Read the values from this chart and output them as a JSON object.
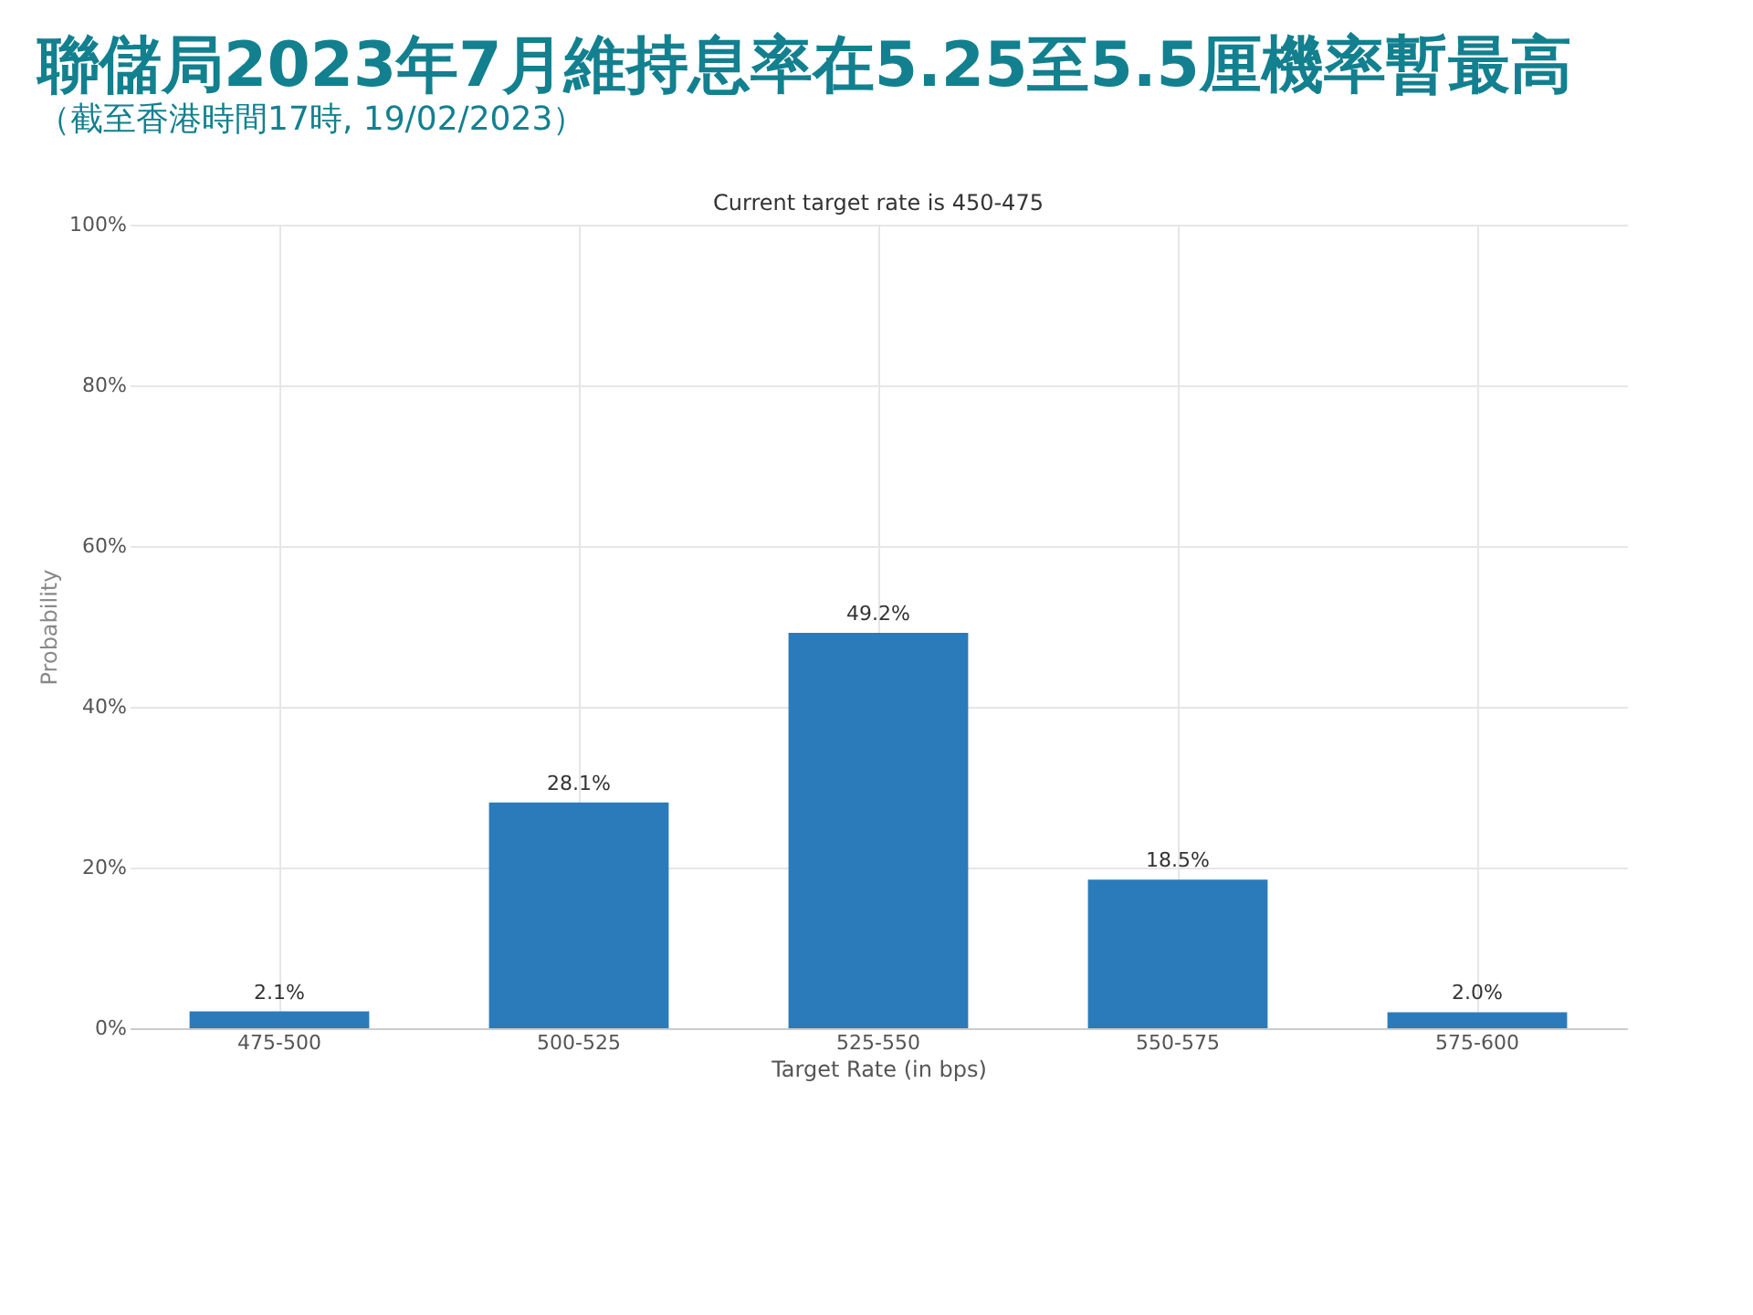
{
  "chart_data": {
    "type": "bar",
    "title": "聯儲局2023年7月維持息率在5.25至5.5厘機率暫最高",
    "subtitle": "（截至香港時間17時, 19/02/2023）",
    "annotations": [
      "Current target rate is 450-475"
    ],
    "categories": [
      "475-500",
      "500-525",
      "525-550",
      "550-575",
      "575-600"
    ],
    "values": [
      2.1,
      28.1,
      49.2,
      18.5,
      2.0
    ],
    "value_labels": [
      "2.1%",
      "28.1%",
      "49.2%",
      "18.5%",
      "2.0%"
    ],
    "color": "#2b7bba",
    "xlabel": "Target Rate (in bps)",
    "ylabel": "Probability",
    "ylim": [
      0,
      100
    ],
    "yticks": [
      {
        "value": 0,
        "label": "0%"
      },
      {
        "value": 20,
        "label": "20%"
      },
      {
        "value": 40,
        "label": "40%"
      },
      {
        "value": 60,
        "label": "60%"
      },
      {
        "value": 80,
        "label": "80%"
      },
      {
        "value": 100,
        "label": "100%"
      }
    ],
    "grid": true
  }
}
